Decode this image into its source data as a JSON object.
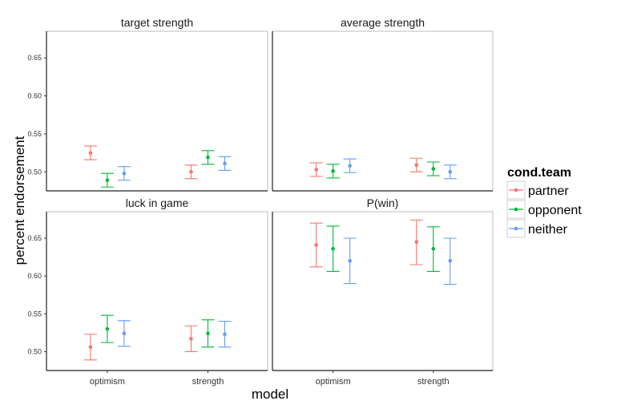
{
  "chart_data": {
    "type": "errorbar",
    "xlabel": "model",
    "ylabel": "percent endorsement",
    "categories": [
      "optimism",
      "strength"
    ],
    "ylim": [
      0.475,
      0.685
    ],
    "yticks": [
      0.5,
      0.55,
      0.6,
      0.65
    ],
    "ytick_labels": [
      "0.50",
      "0.55",
      "0.60",
      "0.65"
    ],
    "legend": {
      "title": "cond.team",
      "placement": "right",
      "entries": [
        {
          "name": "partner",
          "color": "#F8766D"
        },
        {
          "name": "opponent",
          "color": "#00BA38"
        },
        {
          "name": "neither",
          "color": "#619CFF"
        }
      ]
    },
    "facets": [
      {
        "title": "target strength",
        "series": [
          {
            "name": "partner",
            "points": [
              {
                "x": "optimism",
                "y": 0.525,
                "lo": 0.516,
                "hi": 0.534
              },
              {
                "x": "strength",
                "y": 0.5,
                "lo": 0.491,
                "hi": 0.509
              }
            ]
          },
          {
            "name": "opponent",
            "points": [
              {
                "x": "optimism",
                "y": 0.489,
                "lo": 0.48,
                "hi": 0.498
              },
              {
                "x": "strength",
                "y": 0.519,
                "lo": 0.51,
                "hi": 0.528
              }
            ]
          },
          {
            "name": "neither",
            "points": [
              {
                "x": "optimism",
                "y": 0.498,
                "lo": 0.489,
                "hi": 0.507
              },
              {
                "x": "strength",
                "y": 0.511,
                "lo": 0.502,
                "hi": 0.52
              }
            ]
          }
        ]
      },
      {
        "title": "average strength",
        "series": [
          {
            "name": "partner",
            "points": [
              {
                "x": "optimism",
                "y": 0.503,
                "lo": 0.494,
                "hi": 0.512
              },
              {
                "x": "strength",
                "y": 0.509,
                "lo": 0.5,
                "hi": 0.518
              }
            ]
          },
          {
            "name": "opponent",
            "points": [
              {
                "x": "optimism",
                "y": 0.501,
                "lo": 0.492,
                "hi": 0.51
              },
              {
                "x": "strength",
                "y": 0.504,
                "lo": 0.495,
                "hi": 0.513
              }
            ]
          },
          {
            "name": "neither",
            "points": [
              {
                "x": "optimism",
                "y": 0.508,
                "lo": 0.499,
                "hi": 0.517
              },
              {
                "x": "strength",
                "y": 0.5,
                "lo": 0.491,
                "hi": 0.509
              }
            ]
          }
        ]
      },
      {
        "title": "luck in game",
        "series": [
          {
            "name": "partner",
            "points": [
              {
                "x": "optimism",
                "y": 0.506,
                "lo": 0.489,
                "hi": 0.523
              },
              {
                "x": "strength",
                "y": 0.517,
                "lo": 0.5,
                "hi": 0.534
              }
            ]
          },
          {
            "name": "opponent",
            "points": [
              {
                "x": "optimism",
                "y": 0.53,
                "lo": 0.512,
                "hi": 0.548
              },
              {
                "x": "strength",
                "y": 0.524,
                "lo": 0.506,
                "hi": 0.542
              }
            ]
          },
          {
            "name": "neither",
            "points": [
              {
                "x": "optimism",
                "y": 0.524,
                "lo": 0.507,
                "hi": 0.541
              },
              {
                "x": "strength",
                "y": 0.523,
                "lo": 0.506,
                "hi": 0.54
              }
            ]
          }
        ]
      },
      {
        "title": "P(win)",
        "series": [
          {
            "name": "partner",
            "points": [
              {
                "x": "optimism",
                "y": 0.641,
                "lo": 0.612,
                "hi": 0.67
              },
              {
                "x": "strength",
                "y": 0.645,
                "lo": 0.615,
                "hi": 0.674
              }
            ]
          },
          {
            "name": "opponent",
            "points": [
              {
                "x": "optimism",
                "y": 0.636,
                "lo": 0.606,
                "hi": 0.666
              },
              {
                "x": "strength",
                "y": 0.636,
                "lo": 0.606,
                "hi": 0.665
              }
            ]
          },
          {
            "name": "neither",
            "points": [
              {
                "x": "optimism",
                "y": 0.62,
                "lo": 0.59,
                "hi": 0.65
              },
              {
                "x": "strength",
                "y": 0.62,
                "lo": 0.589,
                "hi": 0.65
              }
            ]
          }
        ]
      }
    ]
  }
}
